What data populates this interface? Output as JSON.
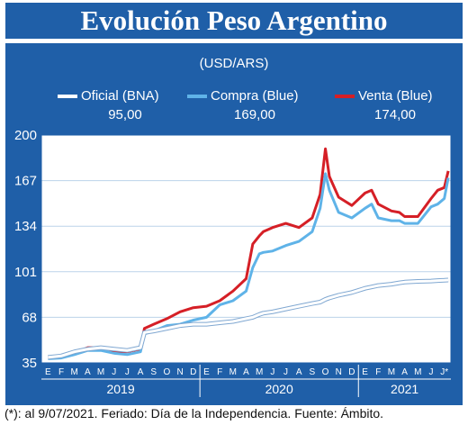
{
  "title": "Evolución Peso Argentino",
  "unit": "(USD/ARS)",
  "footnote": "(*): al 9/07/2021. Feriado: Día de la Independencia. Fuente: Ámbito.",
  "legend": [
    {
      "name": "Oficial (BNA)",
      "value": "95,00",
      "color": "#ffffff"
    },
    {
      "name": "Compra (Blue)",
      "value": "169,00",
      "color": "#5fb3e8"
    },
    {
      "name": "Venta (Blue)",
      "value": "174,00",
      "color": "#d51f26"
    }
  ],
  "chart_data": {
    "type": "line",
    "ylim": [
      35,
      200
    ],
    "yticks": [
      35,
      68,
      101,
      134,
      167,
      200
    ],
    "month_labels": [
      "E",
      "F",
      "M",
      "A",
      "M",
      "J",
      "J",
      "A",
      "S",
      "O",
      "N",
      "D",
      "E",
      "F",
      "M",
      "A",
      "M",
      "J",
      "J",
      "A",
      "S",
      "O",
      "N",
      "D",
      "E",
      "F",
      "M",
      "A",
      "M",
      "J",
      "J*"
    ],
    "years": [
      "2019",
      "2020",
      "2021"
    ],
    "x": [
      0,
      1,
      2,
      3,
      4,
      5,
      6,
      7,
      7.3,
      8,
      8.5,
      9,
      10,
      11,
      12,
      13,
      14,
      15,
      15.5,
      16,
      16.3,
      17,
      18,
      19,
      20,
      20.6,
      21,
      21.3,
      22,
      23,
      24,
      24.5,
      25,
      26,
      26.6,
      27,
      28,
      29,
      29.5,
      30,
      30.3
    ],
    "series": [
      {
        "name": "Oficial (BNA)",
        "color": "#ffffff",
        "values": [
          39,
          40,
          43,
          45,
          46,
          45,
          44,
          46,
          57,
          58,
          59,
          60,
          62,
          63,
          63,
          64,
          65,
          67,
          68,
          70,
          71,
          72,
          74,
          76,
          78,
          79,
          81,
          82,
          84,
          86,
          89,
          90,
          91,
          92,
          93,
          93.5,
          94,
          94.3,
          94.6,
          94.8,
          95
        ]
      },
      {
        "name": "Compra (Blue)",
        "color": "#5fb3e8",
        "values": [
          38,
          38.5,
          41,
          44,
          44,
          42,
          41,
          43,
          56,
          58,
          60,
          62,
          63,
          66,
          68,
          77,
          80,
          87,
          104,
          114,
          115,
          116,
          120,
          123,
          130,
          147,
          172,
          160,
          144,
          140,
          147,
          150,
          140,
          138,
          138,
          136,
          136,
          148,
          150,
          154,
          169
        ]
      },
      {
        "name": "Venta (Blue)",
        "color": "#d51f26",
        "values": [
          39,
          39.5,
          42,
          46,
          46,
          43,
          43,
          45,
          60,
          63,
          65,
          67,
          72,
          75,
          76,
          80,
          87,
          96,
          121,
          127,
          130,
          133,
          136,
          133,
          140,
          157,
          190,
          170,
          155,
          149,
          158,
          160,
          150,
          145,
          144,
          141,
          141,
          154,
          160,
          162,
          174
        ]
      }
    ]
  }
}
